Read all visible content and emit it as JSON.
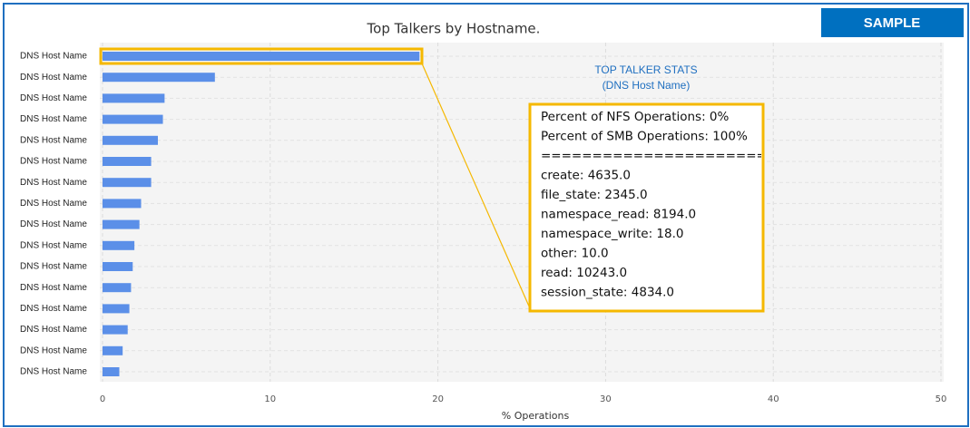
{
  "chart_data": {
    "type": "barh",
    "title": "Top Talkers by Hostname.",
    "badge": "SAMPLE",
    "xlabel": "% Operations",
    "categories": [
      "DNS Host Name",
      "DNS Host Name",
      "DNS Host Name",
      "DNS Host Name",
      "DNS Host Name",
      "DNS Host Name",
      "DNS Host Name",
      "DNS Host Name",
      "DNS Host Name",
      "DNS Host Name",
      "DNS Host Name",
      "DNS Host Name",
      "DNS Host Name",
      "DNS Host Name",
      "DNS Host Name",
      "DNS Host Name"
    ],
    "values": [
      18.9,
      6.7,
      3.7,
      3.6,
      3.3,
      2.9,
      2.9,
      2.3,
      2.2,
      1.9,
      1.8,
      1.7,
      1.6,
      1.5,
      1.2,
      1.0
    ],
    "color": "#5b8fe8",
    "xlim": [
      0,
      50
    ],
    "xticks": [
      0,
      10,
      20,
      30,
      40,
      50
    ],
    "grid": true,
    "annotation": {
      "title": "TOP TALKER STATS",
      "subtitle": "(DNS Host Name)",
      "lines": [
        "Percent of NFS Operations: 0%",
        "Percent of SMB Operations: 100%",
        "======================",
        "create: 4635.0",
        "file_state: 2345.0",
        "namespace_read: 8194.0",
        "namespace_write: 18.0",
        "other: 10.0",
        "read: 10243.0",
        "session_state: 4834.0"
      ]
    }
  }
}
